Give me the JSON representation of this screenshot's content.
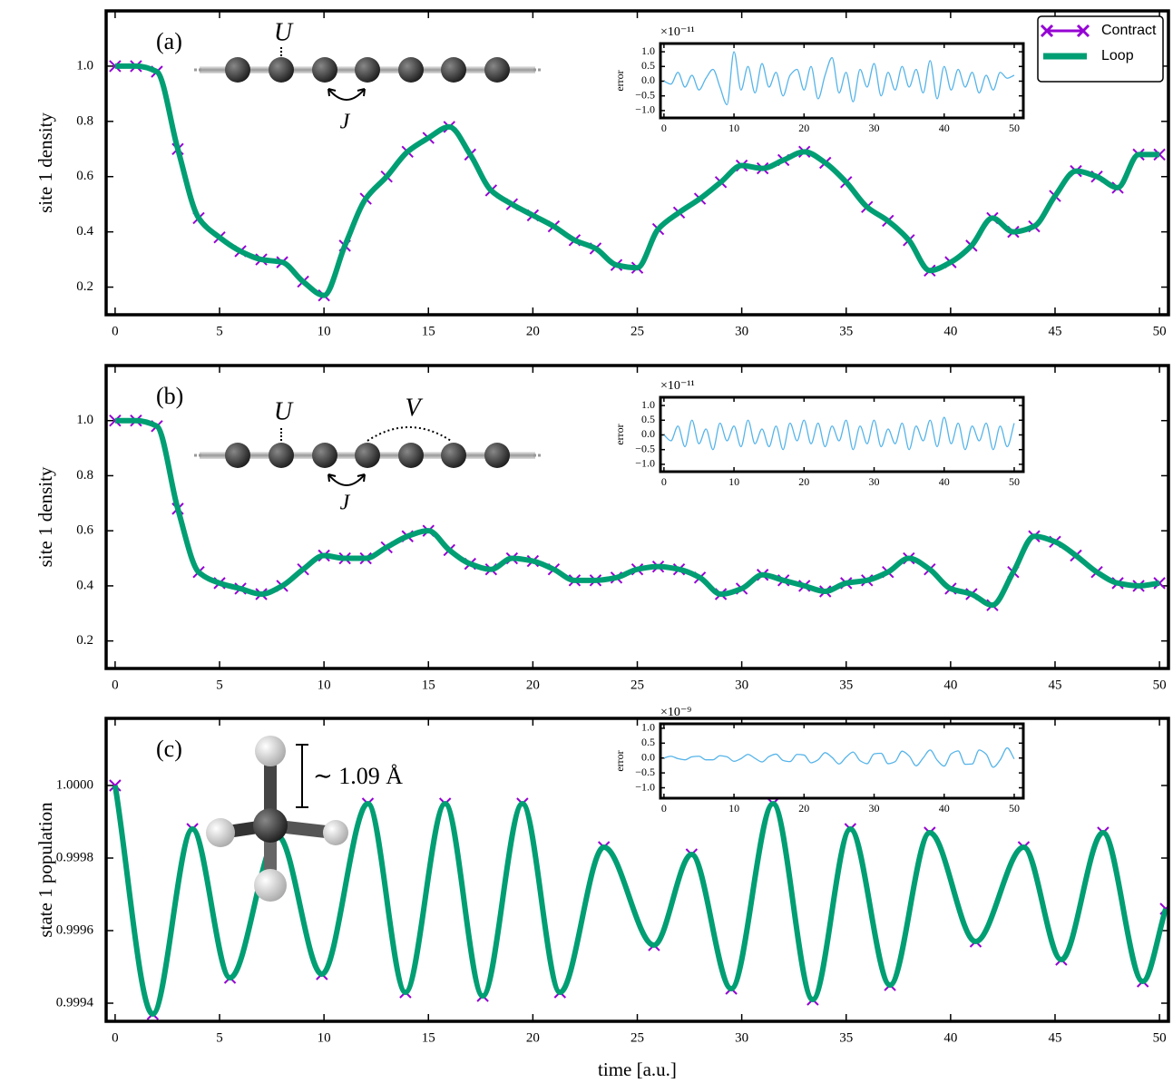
{
  "chart_data": [
    {
      "type": "line",
      "panel_label": "(a)",
      "ylabel": "site 1 density",
      "annotations": [
        "U",
        "J"
      ],
      "legend": "upper right",
      "xlim": [
        -0.43,
        50.43
      ],
      "ylim": [
        0.1,
        1.2
      ],
      "xticks": [
        0,
        5,
        10,
        15,
        20,
        25,
        30,
        35,
        40,
        45,
        50
      ],
      "yticks": [
        0.2,
        0.4,
        0.6,
        0.8,
        {
          "value": 1,
          "label": "1.0"
        }
      ],
      "x": [
        0,
        1,
        2,
        3,
        4,
        5,
        6,
        7,
        8,
        9,
        10,
        11,
        12,
        13,
        14,
        15,
        16,
        17,
        18,
        19,
        20,
        21,
        22,
        23,
        24,
        25,
        26,
        27,
        28,
        29,
        30,
        31,
        32,
        33,
        34,
        35,
        36,
        37,
        38,
        39,
        40,
        41,
        42,
        43,
        44,
        45,
        46,
        47,
        48,
        49,
        50
      ],
      "series": [
        {
          "name": "Contract",
          "color": "#9400d3",
          "marker": "x",
          "values": [
            1.0,
            1.0,
            0.98,
            0.7,
            0.45,
            0.38,
            0.33,
            0.3,
            0.29,
            0.22,
            0.17,
            0.35,
            0.52,
            0.6,
            0.69,
            0.74,
            0.78,
            0.68,
            0.55,
            0.5,
            0.46,
            0.42,
            0.37,
            0.34,
            0.28,
            0.27,
            0.41,
            0.47,
            0.52,
            0.58,
            0.64,
            0.63,
            0.66,
            0.69,
            0.65,
            0.58,
            0.49,
            0.44,
            0.37,
            0.26,
            0.29,
            0.35,
            0.45,
            0.4,
            0.42,
            0.53,
            0.62,
            0.6,
            0.56,
            0.68,
            0.68
          ]
        },
        {
          "name": "Loop",
          "color": "#009e73",
          "values": [
            1.0,
            1.0,
            0.98,
            0.7,
            0.45,
            0.38,
            0.33,
            0.3,
            0.29,
            0.22,
            0.17,
            0.35,
            0.52,
            0.6,
            0.69,
            0.74,
            0.78,
            0.68,
            0.55,
            0.5,
            0.46,
            0.42,
            0.37,
            0.34,
            0.28,
            0.27,
            0.41,
            0.47,
            0.52,
            0.58,
            0.64,
            0.63,
            0.66,
            0.69,
            0.65,
            0.58,
            0.49,
            0.44,
            0.37,
            0.26,
            0.29,
            0.35,
            0.45,
            0.4,
            0.42,
            0.53,
            0.62,
            0.6,
            0.56,
            0.68,
            0.68
          ]
        }
      ]
    },
    {
      "type": "line",
      "ylabel": "error",
      "y_multiplier": "×10⁻¹¹",
      "xlim": [
        -0.5,
        51.3
      ],
      "ylim": [
        -1.25,
        1.28
      ],
      "xticks": [
        0,
        10,
        20,
        30,
        40,
        50
      ],
      "yticks": [
        {
          "value": -1,
          "label": "−1.0"
        },
        {
          "value": -0.5,
          "label": "−0.5"
        },
        {
          "value": 0,
          "label": "0.0"
        },
        0.5,
        {
          "value": 1,
          "label": "1.0"
        }
      ],
      "x": [
        0,
        1,
        2,
        3,
        4,
        5,
        6,
        7,
        8,
        9,
        10,
        11,
        12,
        13,
        14,
        15,
        16,
        17,
        18,
        19,
        20,
        21,
        22,
        23,
        24,
        25,
        26,
        27,
        28,
        29,
        30,
        31,
        32,
        33,
        34,
        35,
        36,
        37,
        38,
        39,
        40,
        41,
        42,
        43,
        44,
        45,
        46,
        47,
        48,
        49,
        50
      ],
      "series": [
        {
          "color": "#56b4e9",
          "values": [
            0,
            -0.1,
            0.3,
            -0.2,
            0.2,
            -0.3,
            0.1,
            0.4,
            -0.2,
            -0.8,
            1.0,
            -0.3,
            0.5,
            -0.4,
            0.6,
            -0.2,
            0.3,
            -0.5,
            0.2,
            0.4,
            -0.3,
            0.5,
            -0.6,
            0.2,
            0.8,
            -0.4,
            0.3,
            -0.7,
            0.4,
            -0.2,
            0.6,
            -0.5,
            0.3,
            -0.3,
            0.5,
            -0.2,
            0.4,
            -0.4,
            0.7,
            -0.6,
            0.5,
            -0.3,
            0.4,
            -0.2,
            0.3,
            -0.4,
            0.2,
            -0.3,
            0.3,
            0.1,
            0.2
          ]
        }
      ]
    },
    {
      "type": "line",
      "panel_label": "(b)",
      "ylabel": "site 1 density",
      "annotations": [
        "U",
        "V",
        "J"
      ],
      "xlim": [
        -0.43,
        50.43
      ],
      "ylim": [
        0.1,
        1.2
      ],
      "xticks": [
        0,
        5,
        10,
        15,
        20,
        25,
        30,
        35,
        40,
        45,
        50
      ],
      "yticks": [
        0.2,
        0.4,
        0.6,
        0.8,
        {
          "value": 1,
          "label": "1.0"
        }
      ],
      "x": [
        0,
        1,
        2,
        3,
        4,
        5,
        6,
        7,
        8,
        9,
        10,
        11,
        12,
        13,
        14,
        15,
        16,
        17,
        18,
        19,
        20,
        21,
        22,
        23,
        24,
        25,
        26,
        27,
        28,
        29,
        30,
        31,
        32,
        33,
        34,
        35,
        36,
        37,
        38,
        39,
        40,
        41,
        42,
        43,
        44,
        45,
        46,
        47,
        48,
        49,
        50
      ],
      "series": [
        {
          "name": "Contract",
          "color": "#9400d3",
          "marker": "x",
          "values": [
            1.0,
            1.0,
            0.98,
            0.68,
            0.45,
            0.41,
            0.39,
            0.37,
            0.4,
            0.46,
            0.51,
            0.5,
            0.5,
            0.54,
            0.58,
            0.6,
            0.53,
            0.48,
            0.46,
            0.5,
            0.49,
            0.46,
            0.42,
            0.42,
            0.43,
            0.46,
            0.47,
            0.46,
            0.43,
            0.37,
            0.39,
            0.44,
            0.42,
            0.4,
            0.38,
            0.41,
            0.42,
            0.45,
            0.5,
            0.46,
            0.39,
            0.37,
            0.33,
            0.45,
            0.58,
            0.56,
            0.51,
            0.45,
            0.41,
            0.4,
            0.41
          ]
        },
        {
          "name": "Loop",
          "color": "#009e73",
          "values": [
            1.0,
            1.0,
            0.98,
            0.68,
            0.45,
            0.41,
            0.39,
            0.37,
            0.4,
            0.46,
            0.51,
            0.5,
            0.5,
            0.54,
            0.58,
            0.6,
            0.53,
            0.48,
            0.46,
            0.5,
            0.49,
            0.46,
            0.42,
            0.42,
            0.43,
            0.46,
            0.47,
            0.46,
            0.43,
            0.37,
            0.39,
            0.44,
            0.42,
            0.4,
            0.38,
            0.41,
            0.42,
            0.45,
            0.5,
            0.46,
            0.39,
            0.37,
            0.33,
            0.45,
            0.58,
            0.56,
            0.51,
            0.45,
            0.41,
            0.4,
            0.41
          ]
        }
      ]
    },
    {
      "type": "line",
      "ylabel": "error",
      "y_multiplier": "×10⁻¹¹",
      "xlim": [
        -0.5,
        51.3
      ],
      "ylim": [
        -1.25,
        1.28
      ],
      "xticks": [
        0,
        10,
        20,
        30,
        40,
        50
      ],
      "yticks": [
        {
          "value": -1,
          "label": "−1.0"
        },
        {
          "value": -0.5,
          "label": "−0.5"
        },
        {
          "value": 0,
          "label": "0.0"
        },
        0.5,
        {
          "value": 1,
          "label": "1.0"
        }
      ],
      "x": [
        0,
        1,
        2,
        3,
        4,
        5,
        6,
        7,
        8,
        9,
        10,
        11,
        12,
        13,
        14,
        15,
        16,
        17,
        18,
        19,
        20,
        21,
        22,
        23,
        24,
        25,
        26,
        27,
        28,
        29,
        30,
        31,
        32,
        33,
        34,
        35,
        36,
        37,
        38,
        39,
        40,
        41,
        42,
        43,
        44,
        45,
        46,
        47,
        48,
        49,
        50
      ],
      "series": [
        {
          "color": "#56b4e9",
          "values": [
            0,
            -0.2,
            0.3,
            -0.4,
            0.5,
            -0.3,
            0.2,
            -0.5,
            0.4,
            -0.2,
            0.3,
            -0.4,
            0.5,
            -0.3,
            0.2,
            -0.4,
            0.3,
            -0.5,
            0.4,
            -0.2,
            0.5,
            -0.3,
            0.4,
            -0.4,
            0.3,
            -0.2,
            0.5,
            -0.5,
            0.3,
            -0.3,
            0.5,
            -0.4,
            0.2,
            -0.3,
            0.4,
            -0.5,
            0.3,
            -0.2,
            0.5,
            -0.4,
            0.6,
            -0.3,
            0.4,
            -0.5,
            0.3,
            -0.2,
            0.4,
            -0.5,
            0.3,
            -0.4,
            0.4
          ]
        }
      ]
    },
    {
      "type": "line",
      "panel_label": "(c)",
      "ylabel": "state 1 population",
      "xlabel": "time [a.u.]",
      "annotations": [
        "∼ 1.09 Å"
      ],
      "xlim": [
        -0.43,
        50.43
      ],
      "ylim": [
        0.99935,
        1.000185
      ],
      "xticks": [
        0,
        5,
        10,
        15,
        20,
        25,
        30,
        35,
        40,
        45,
        50
      ],
      "yticks": [
        0.9994,
        0.9996,
        0.9998,
        {
          "value": 1,
          "label": "1.0000"
        }
      ],
      "x": [
        0,
        1.8,
        3.7,
        5.5,
        7.8,
        9.9,
        12.1,
        13.9,
        15.8,
        17.6,
        19.5,
        21.3,
        23.4,
        25.8,
        27.6,
        29.5,
        31.5,
        33.4,
        35.2,
        37.1,
        39,
        41.2,
        43.5,
        45.3,
        47.3,
        49.2,
        50.3
      ],
      "series": [
        {
          "name": "Contract",
          "color": "#9400d3",
          "marker": "x",
          "values": [
            1.0,
            0.99937,
            0.99988,
            0.99947,
            0.99986,
            0.99948,
            0.99995,
            0.99943,
            0.99995,
            0.99942,
            0.99995,
            0.99943,
            0.99983,
            0.99956,
            0.99981,
            0.99944,
            0.99995,
            0.99941,
            0.99988,
            0.99945,
            0.99987,
            0.99957,
            0.99983,
            0.99952,
            0.99987,
            0.99946,
            0.99966
          ]
        },
        {
          "name": "Loop",
          "color": "#009e73",
          "values": [
            1.0,
            0.99937,
            0.99988,
            0.99947,
            0.99986,
            0.99948,
            0.99995,
            0.99943,
            0.99995,
            0.99942,
            0.99995,
            0.99943,
            0.99983,
            0.99956,
            0.99981,
            0.99944,
            0.99995,
            0.99941,
            0.99988,
            0.99945,
            0.99987,
            0.99957,
            0.99983,
            0.99952,
            0.99987,
            0.99946,
            0.99966
          ]
        }
      ]
    },
    {
      "type": "line",
      "ylabel": "error",
      "y_multiplier": "×10⁻⁹",
      "xlim": [
        -0.5,
        51.3
      ],
      "ylim": [
        -1.35,
        1.15
      ],
      "xticks": [
        0,
        10,
        20,
        30,
        40,
        50
      ],
      "yticks": [
        {
          "value": -1,
          "label": "−1.0"
        },
        {
          "value": -0.5,
          "label": "−0.5"
        },
        {
          "value": 0,
          "label": "0.0"
        },
        0.5,
        {
          "value": 1,
          "label": "1.0"
        }
      ],
      "x": [
        0,
        1,
        2,
        3,
        4,
        5,
        6,
        7,
        8,
        9,
        10,
        11,
        12,
        13,
        14,
        15,
        16,
        17,
        18,
        19,
        20,
        21,
        22,
        23,
        24,
        25,
        26,
        27,
        28,
        29,
        30,
        31,
        32,
        33,
        34,
        35,
        36,
        37,
        38,
        39,
        40,
        41,
        42,
        43,
        44,
        45,
        46,
        47,
        48,
        49,
        50
      ],
      "series": [
        {
          "color": "#56b4e9",
          "values": [
            0,
            0.06,
            -0.02,
            -0.06,
            0.04,
            0.06,
            -0.06,
            -0.06,
            0.08,
            0.04,
            -0.11,
            -0.02,
            0.12,
            -0.01,
            -0.13,
            0.05,
            0.13,
            -0.08,
            -0.12,
            0.12,
            0.1,
            -0.16,
            -0.06,
            0.18,
            0.02,
            -0.2,
            0.03,
            0.2,
            -0.09,
            -0.19,
            0.14,
            0.16,
            -0.19,
            -0.12,
            0.23,
            0.07,
            -0.26,
            0,
            0.27,
            -0.07,
            -0.27,
            0.14,
            0.24,
            -0.21,
            -0.2,
            0.27,
            0.13,
            -0.31,
            -0.06,
            0.34,
            -0.03
          ]
        }
      ]
    }
  ]
}
